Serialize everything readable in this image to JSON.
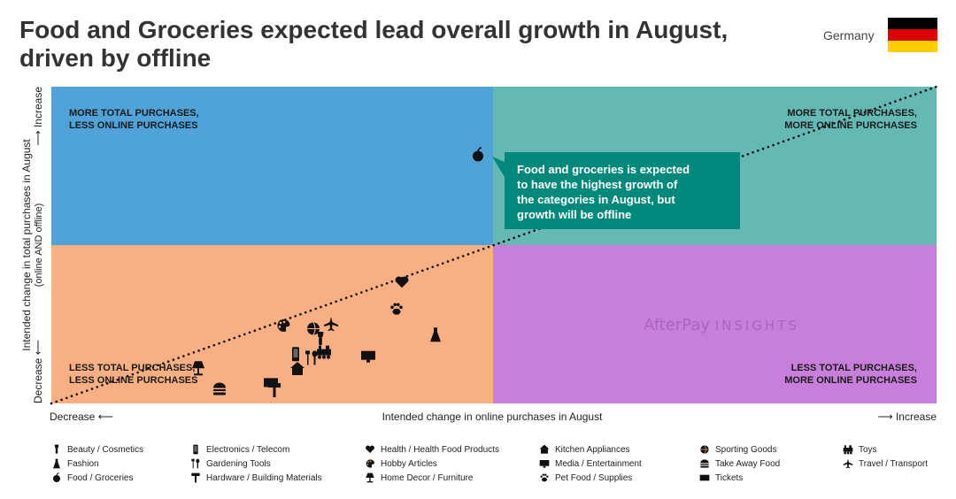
{
  "title": "Food and Groceries expected lead overall growth in August, driven by offline",
  "country": "Germany",
  "watermark": {
    "brand_a": "AfterPay",
    "brand_b": "INSIGHTS"
  },
  "colors": {
    "q_top_left": "#4fa3d8",
    "q_top_right": "#64b9b4",
    "q_bottom_left": "#f9af84",
    "q_bottom_right": "#c87fdb",
    "callout": "#00897b",
    "flag": [
      "#000000",
      "#dd0000",
      "#ffce00"
    ]
  },
  "chart_data": {
    "type": "scatter",
    "xlabel": "Intended change in online purchases in August",
    "x_low": "Decrease",
    "x_high": "Increase",
    "ylabel_line1": "Intended change in total purchases in August",
    "ylabel_line2": "(online AND offline)",
    "y_low": "Decrease",
    "y_high": "Increase",
    "xlim": [
      0,
      100
    ],
    "ylim": [
      0,
      100
    ],
    "quadrants": {
      "top_left": [
        "MORE TOTAL PURCHASES,",
        "LESS ONLINE PURCHASES"
      ],
      "top_right": [
        "MORE TOTAL PURCHASES,",
        "MORE ONLINE PURCHASES"
      ],
      "bottom_left": [
        "LESS TOTAL PURCHASES,",
        "LESS ONLINE PURCHASES"
      ],
      "bottom_right": [
        "LESS TOTAL PURCHASES,",
        "MORE ONLINE PURCHASES"
      ]
    },
    "trend": [
      [
        0,
        0
      ],
      [
        100,
        100
      ]
    ],
    "callout": [
      "Food and groceries is expected",
      "to have the highest growth of",
      "the categories in August, but",
      "growth will be offline"
    ],
    "points": [
      {
        "category": "Food / Groceries",
        "icon": "apple",
        "x": 48.2,
        "y": 78.5
      },
      {
        "category": "Health / Health Food Products",
        "icon": "heart",
        "x": 39.6,
        "y": 38.2
      },
      {
        "category": "Pet Food / Supplies",
        "icon": "paw",
        "x": 39.0,
        "y": 29.8
      },
      {
        "category": "Fashion",
        "icon": "dress",
        "x": 43.4,
        "y": 21.7
      },
      {
        "category": "Hobby Articles",
        "icon": "palette",
        "x": 26.2,
        "y": 24.6
      },
      {
        "category": "Sporting Goods",
        "icon": "ball",
        "x": 29.6,
        "y": 23.6
      },
      {
        "category": "Travel / Transport",
        "icon": "plane",
        "x": 31.6,
        "y": 25.1
      },
      {
        "category": "Beauty / Cosmetics",
        "icon": "beauty",
        "x": 30.4,
        "y": 20.4
      },
      {
        "category": "Toys",
        "icon": "train",
        "x": 30.8,
        "y": 16.3
      },
      {
        "category": "Electronics / Telecom",
        "icon": "phone",
        "x": 27.6,
        "y": 15.6
      },
      {
        "category": "Gardening Tools",
        "icon": "tools",
        "x": 29.4,
        "y": 14.4
      },
      {
        "category": "Kitchen Appliances",
        "icon": "house",
        "x": 27.8,
        "y": 10.9
      },
      {
        "category": "Media / Entertainment",
        "icon": "monitor",
        "x": 35.8,
        "y": 14.9
      },
      {
        "category": "Home Decor / Furniture",
        "icon": "lamp",
        "x": 16.6,
        "y": 11.1
      },
      {
        "category": "Tickets",
        "icon": "ticket",
        "x": 24.8,
        "y": 6.6
      },
      {
        "category": "Hardware / Building Materials",
        "icon": "hammer",
        "x": 25.2,
        "y": 4.2
      },
      {
        "category": "Take Away Food",
        "icon": "burger",
        "x": 19.0,
        "y": 4.6
      }
    ]
  },
  "legend": [
    {
      "label": "Beauty / Cosmetics",
      "icon": "beauty"
    },
    {
      "label": "Fashion",
      "icon": "dress"
    },
    {
      "label": "Food / Groceries",
      "icon": "apple"
    },
    {
      "label": "Electronics / Telecom",
      "icon": "phone"
    },
    {
      "label": "Gardening Tools",
      "icon": "tools"
    },
    {
      "label": "Hardware / Building Materials",
      "icon": "hammer"
    },
    {
      "label": "Health / Health Food Products",
      "icon": "heart"
    },
    {
      "label": "Hobby Articles",
      "icon": "palette"
    },
    {
      "label": "Home Decor / Furniture",
      "icon": "lamp"
    },
    {
      "label": "Kitchen Appliances",
      "icon": "house"
    },
    {
      "label": "Media / Entertainment",
      "icon": "monitor"
    },
    {
      "label": "Pet Food / Supplies",
      "icon": "paw"
    },
    {
      "label": "Sporting Goods",
      "icon": "ball"
    },
    {
      "label": "Take Away Food",
      "icon": "burger"
    },
    {
      "label": "Tickets",
      "icon": "ticket"
    },
    {
      "label": "Toys",
      "icon": "train"
    },
    {
      "label": "Travel / Transport",
      "icon": "plane"
    }
  ]
}
